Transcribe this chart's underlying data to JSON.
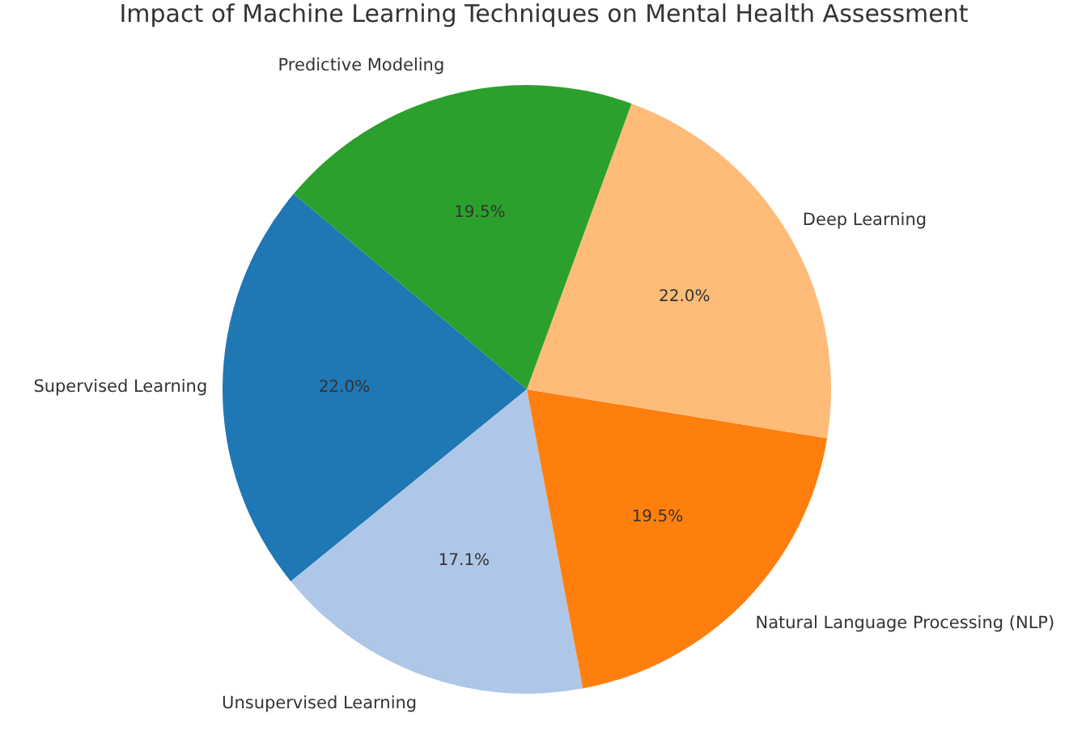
{
  "chart_data": {
    "type": "pie",
    "title": "Impact of Machine Learning Techniques on Mental Health Assessment",
    "categories": [
      "Supervised Learning",
      "Unsupervised Learning",
      "Natural Language Processing (NLP)",
      "Deep Learning",
      "Predictive Modeling"
    ],
    "values": [
      22.0,
      17.1,
      19.5,
      22.0,
      19.5
    ],
    "value_labels": [
      "22.0%",
      "17.1%",
      "19.5%",
      "22.0%",
      "19.5%"
    ],
    "colors": [
      "#1f77b4",
      "#aec7e8",
      "#ff7f0e",
      "#ffbb78",
      "#2ca02c"
    ]
  }
}
